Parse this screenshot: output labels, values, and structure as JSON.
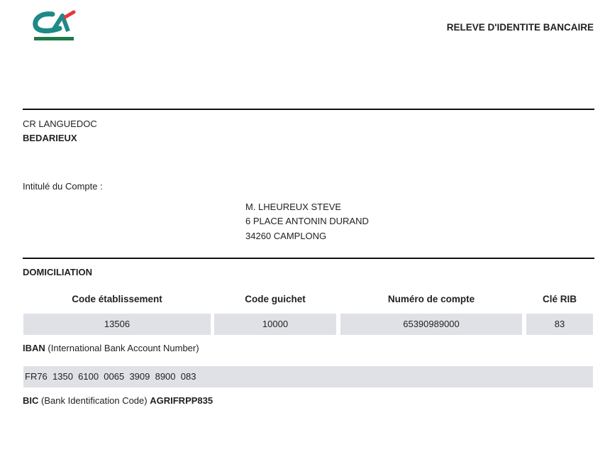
{
  "logo": {
    "name": "credit-agricole-logo",
    "text": "CA",
    "colors": {
      "teal": "#1d8a86",
      "red": "#e5383b",
      "green": "#1e7a4a"
    }
  },
  "header": {
    "title": "RELEVE D'IDENTITE BANCAIRE"
  },
  "bank": {
    "region": "CR LANGUEDOC",
    "branch": "BEDARIEUX"
  },
  "account_holder": {
    "label": "Intitulé du Compte :",
    "name": "M. LHEUREUX STEVE",
    "address_line1": "6 PLACE ANTONIN DURAND",
    "address_line2": "34260 CAMPLONG"
  },
  "domiciliation": {
    "title": "DOMICILIATION",
    "columns": [
      "Code établissement",
      "Code guichet",
      "Numéro de compte",
      "Clé RIB"
    ],
    "values": [
      "13506",
      "10000",
      "65390989000",
      "83"
    ]
  },
  "iban": {
    "label": "IBAN",
    "description": "(International Bank Account Number)",
    "value": "FR76  1350  6100  0065  3909  8900  083"
  },
  "bic": {
    "label": "BIC",
    "description": "(Bank Identification Code)",
    "value": "AGRIFRPP835"
  }
}
